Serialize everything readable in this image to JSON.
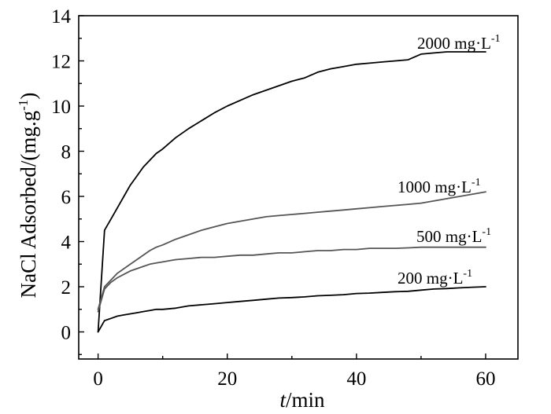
{
  "chart_data": {
    "type": "line",
    "title": "",
    "xlabel": {
      "italic": "t",
      "rest": "/min"
    },
    "ylabel": "NaCl Adsorbed/(mg.g",
    "ylabel_sup": "-1",
    "ylabel_close": ")",
    "xlim": [
      -3,
      65
    ],
    "ylim": [
      -1.2,
      14
    ],
    "xticks": [
      0,
      20,
      40,
      60
    ],
    "yticks": [
      0,
      2,
      4,
      6,
      8,
      10,
      12,
      14
    ],
    "xtick_labels": [
      "0",
      "20",
      "40",
      "60"
    ],
    "ytick_labels": [
      "0",
      "2",
      "4",
      "6",
      "8",
      "10",
      "12",
      "14"
    ],
    "grid": false,
    "legend": "inline labels at right end of each curve",
    "series": [
      {
        "label_main": "2000 mg·L",
        "label_sup": "-1",
        "color": "#000000",
        "x": [
          0,
          1,
          2,
          3,
          4,
          5,
          6,
          7,
          8,
          9,
          10,
          12,
          14,
          16,
          18,
          20,
          22,
          24,
          26,
          28,
          30,
          32,
          34,
          36,
          38,
          40,
          42,
          44,
          46,
          48,
          50,
          52,
          54,
          56,
          58,
          60
        ],
        "y": [
          0,
          4.5,
          5.0,
          5.5,
          6.0,
          6.5,
          6.9,
          7.3,
          7.6,
          7.9,
          8.1,
          8.6,
          9.0,
          9.35,
          9.7,
          10.0,
          10.25,
          10.5,
          10.7,
          10.9,
          11.1,
          11.25,
          11.5,
          11.65,
          11.75,
          11.85,
          11.9,
          11.95,
          12.0,
          12.05,
          12.3,
          12.35,
          12.4,
          12.4,
          12.4,
          12.4
        ]
      },
      {
        "label_main": "1000 mg·L",
        "label_sup": "-1",
        "color": "#555555",
        "x": [
          0,
          1,
          2,
          3,
          4,
          5,
          6,
          7,
          8,
          9,
          10,
          12,
          14,
          16,
          18,
          20,
          22,
          24,
          26,
          28,
          30,
          32,
          34,
          36,
          38,
          40,
          42,
          44,
          46,
          48,
          50,
          52,
          54,
          56,
          58,
          60
        ],
        "y": [
          1.0,
          2.0,
          2.3,
          2.6,
          2.8,
          3.0,
          3.2,
          3.4,
          3.6,
          3.75,
          3.85,
          4.1,
          4.3,
          4.5,
          4.65,
          4.8,
          4.9,
          5.0,
          5.1,
          5.15,
          5.2,
          5.25,
          5.3,
          5.35,
          5.4,
          5.45,
          5.5,
          5.55,
          5.6,
          5.65,
          5.7,
          5.8,
          5.9,
          6.0,
          6.1,
          6.2
        ]
      },
      {
        "label_main": "500 mg·L",
        "label_sup": "-1",
        "color": "#555555",
        "x": [
          0,
          1,
          2,
          3,
          4,
          5,
          6,
          7,
          8,
          9,
          10,
          12,
          14,
          16,
          18,
          20,
          22,
          24,
          26,
          28,
          30,
          32,
          34,
          36,
          38,
          40,
          42,
          44,
          46,
          48,
          50,
          52,
          54,
          56,
          58,
          60
        ],
        "y": [
          0.9,
          1.9,
          2.2,
          2.4,
          2.55,
          2.7,
          2.8,
          2.9,
          3.0,
          3.05,
          3.1,
          3.2,
          3.25,
          3.3,
          3.3,
          3.35,
          3.4,
          3.4,
          3.45,
          3.5,
          3.5,
          3.55,
          3.6,
          3.6,
          3.65,
          3.65,
          3.7,
          3.7,
          3.7,
          3.72,
          3.75,
          3.75,
          3.75,
          3.75,
          3.75,
          3.75
        ]
      },
      {
        "label_main": "200 mg·L",
        "label_sup": "-1",
        "color": "#000000",
        "x": [
          0,
          1,
          2,
          3,
          4,
          5,
          6,
          7,
          8,
          9,
          10,
          12,
          14,
          16,
          18,
          20,
          22,
          24,
          26,
          28,
          30,
          32,
          34,
          36,
          38,
          40,
          42,
          44,
          46,
          48,
          50,
          52,
          54,
          56,
          58,
          60
        ],
        "y": [
          0,
          0.5,
          0.6,
          0.7,
          0.75,
          0.8,
          0.85,
          0.9,
          0.95,
          1.0,
          1.0,
          1.05,
          1.15,
          1.2,
          1.25,
          1.3,
          1.35,
          1.4,
          1.45,
          1.5,
          1.52,
          1.55,
          1.6,
          1.62,
          1.65,
          1.7,
          1.72,
          1.75,
          1.78,
          1.8,
          1.85,
          1.9,
          1.92,
          1.95,
          1.98,
          2.0
        ]
      }
    ]
  }
}
